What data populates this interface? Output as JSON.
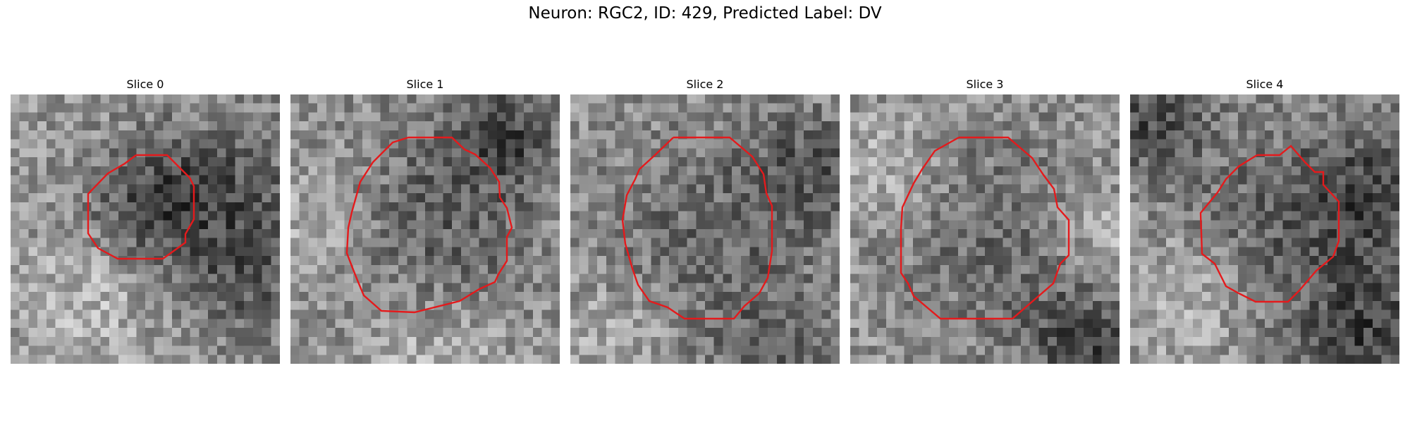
{
  "figure": {
    "title": "Neuron: RGC2, ID: 429, Predicted Label: DV",
    "outline_color": "#e41a1c"
  },
  "slices": [
    {
      "title": "Slice 0"
    },
    {
      "title": "Slice 1"
    },
    {
      "title": "Slice 2"
    },
    {
      "title": "Slice 3"
    },
    {
      "title": "Slice 4"
    }
  ]
}
